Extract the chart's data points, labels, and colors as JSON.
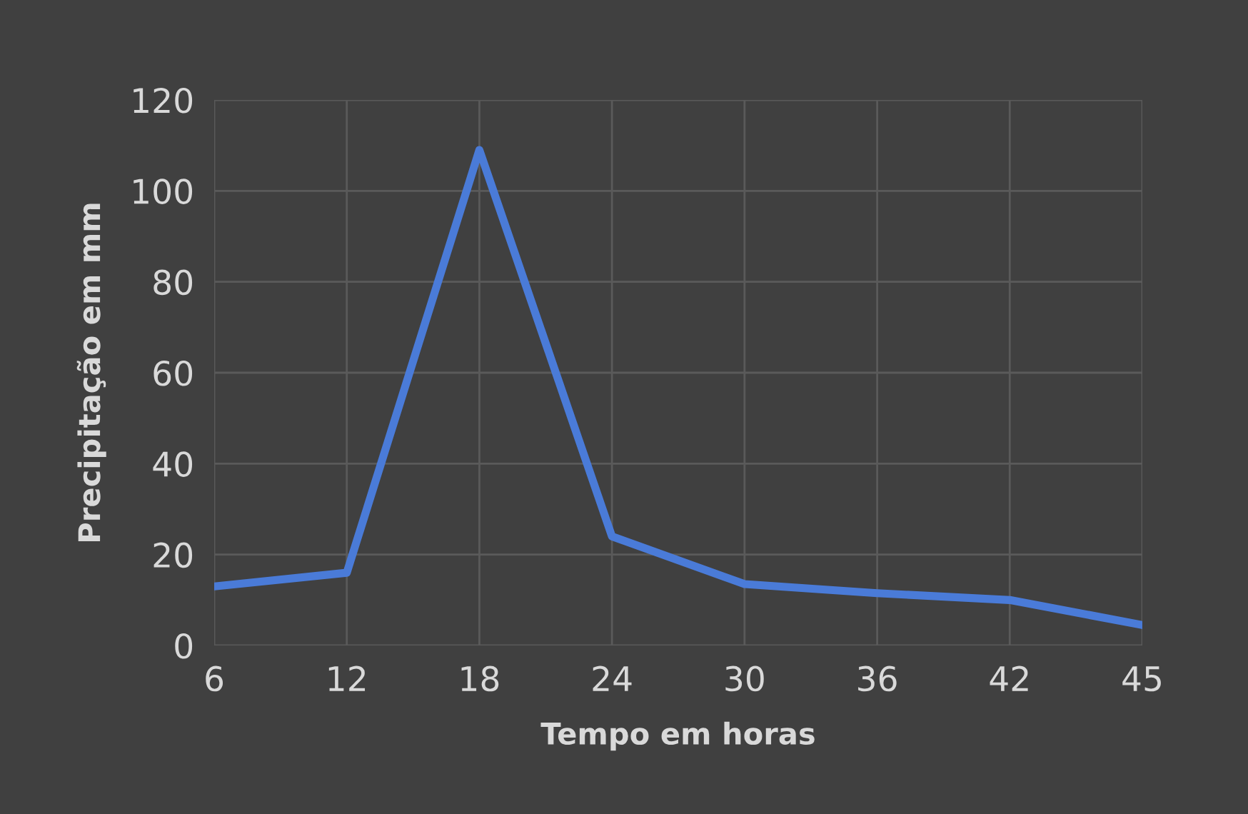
{
  "chart_data": {
    "type": "line",
    "xlabel": "Tempo em horas",
    "ylabel": "Precipitação em mm",
    "categories": [
      "6",
      "12",
      "18",
      "24",
      "30",
      "36",
      "42",
      "45"
    ],
    "series": [
      {
        "color": "#4a7bd8",
        "values": [
          13,
          16,
          109,
          24,
          13.5,
          11.5,
          10,
          4.5
        ]
      }
    ],
    "ylim": [
      0,
      120
    ],
    "yticks": [
      0,
      20,
      40,
      60,
      80,
      100,
      120
    ],
    "grid": true,
    "marker": "none",
    "line_style": "solid"
  }
}
